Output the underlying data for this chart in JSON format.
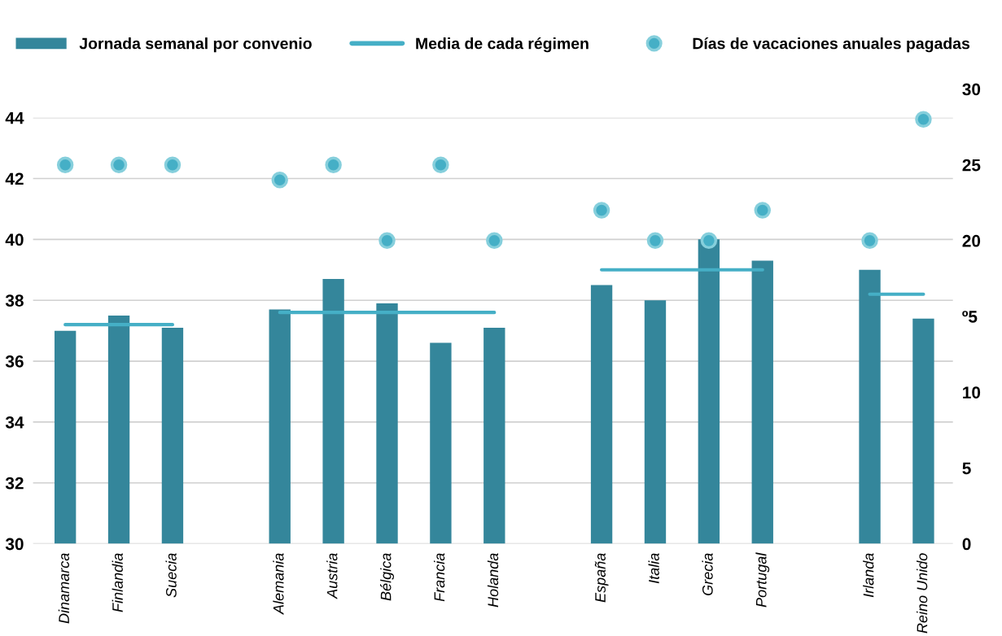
{
  "chart_data": {
    "type": "bar",
    "categories": [
      "Dinamarca",
      "Finlandia",
      "Suecia",
      null,
      "Alemania",
      "Austria",
      "Bélgica",
      "Francia",
      "Holanda",
      null,
      "España",
      "Italia",
      "Grecia",
      "Portugal",
      null,
      "Irlanda",
      "Reino Unido"
    ],
    "series": [
      {
        "name": "Jornada semanal por convenio",
        "color": "#34869b",
        "values": [
          37.0,
          37.5,
          37.1,
          null,
          37.7,
          38.7,
          37.9,
          36.6,
          37.1,
          null,
          38.5,
          38.0,
          40.0,
          39.3,
          null,
          39.0,
          37.4
        ]
      },
      {
        "name": "Media de cada régimen",
        "type": "line",
        "color": "#45afc6",
        "values": [
          37.2,
          37.2,
          37.2,
          null,
          37.6,
          37.6,
          37.6,
          37.6,
          37.6,
          null,
          39.0,
          39.0,
          39.0,
          39.0,
          null,
          38.2,
          38.2
        ]
      },
      {
        "name": "Días de vacaciones anuales pagadas",
        "type": "scatter",
        "marker": "circle",
        "axis": "y2",
        "color": "#45afc6",
        "values": [
          25,
          25,
          25,
          null,
          24,
          25,
          20,
          25,
          20,
          null,
          22,
          20,
          20,
          22,
          null,
          20,
          28
        ]
      }
    ],
    "ylim": [
      30,
      44
    ],
    "yticks": [
      30,
      32,
      34,
      36,
      38,
      40,
      42,
      44
    ],
    "y2lim": [
      0,
      30
    ],
    "y2ticks": [
      0,
      5,
      10,
      {
        "value": 15,
        "label": "º5"
      },
      20,
      25,
      30
    ],
    "grid": "y",
    "legend": "top",
    "line_style": "solid"
  }
}
